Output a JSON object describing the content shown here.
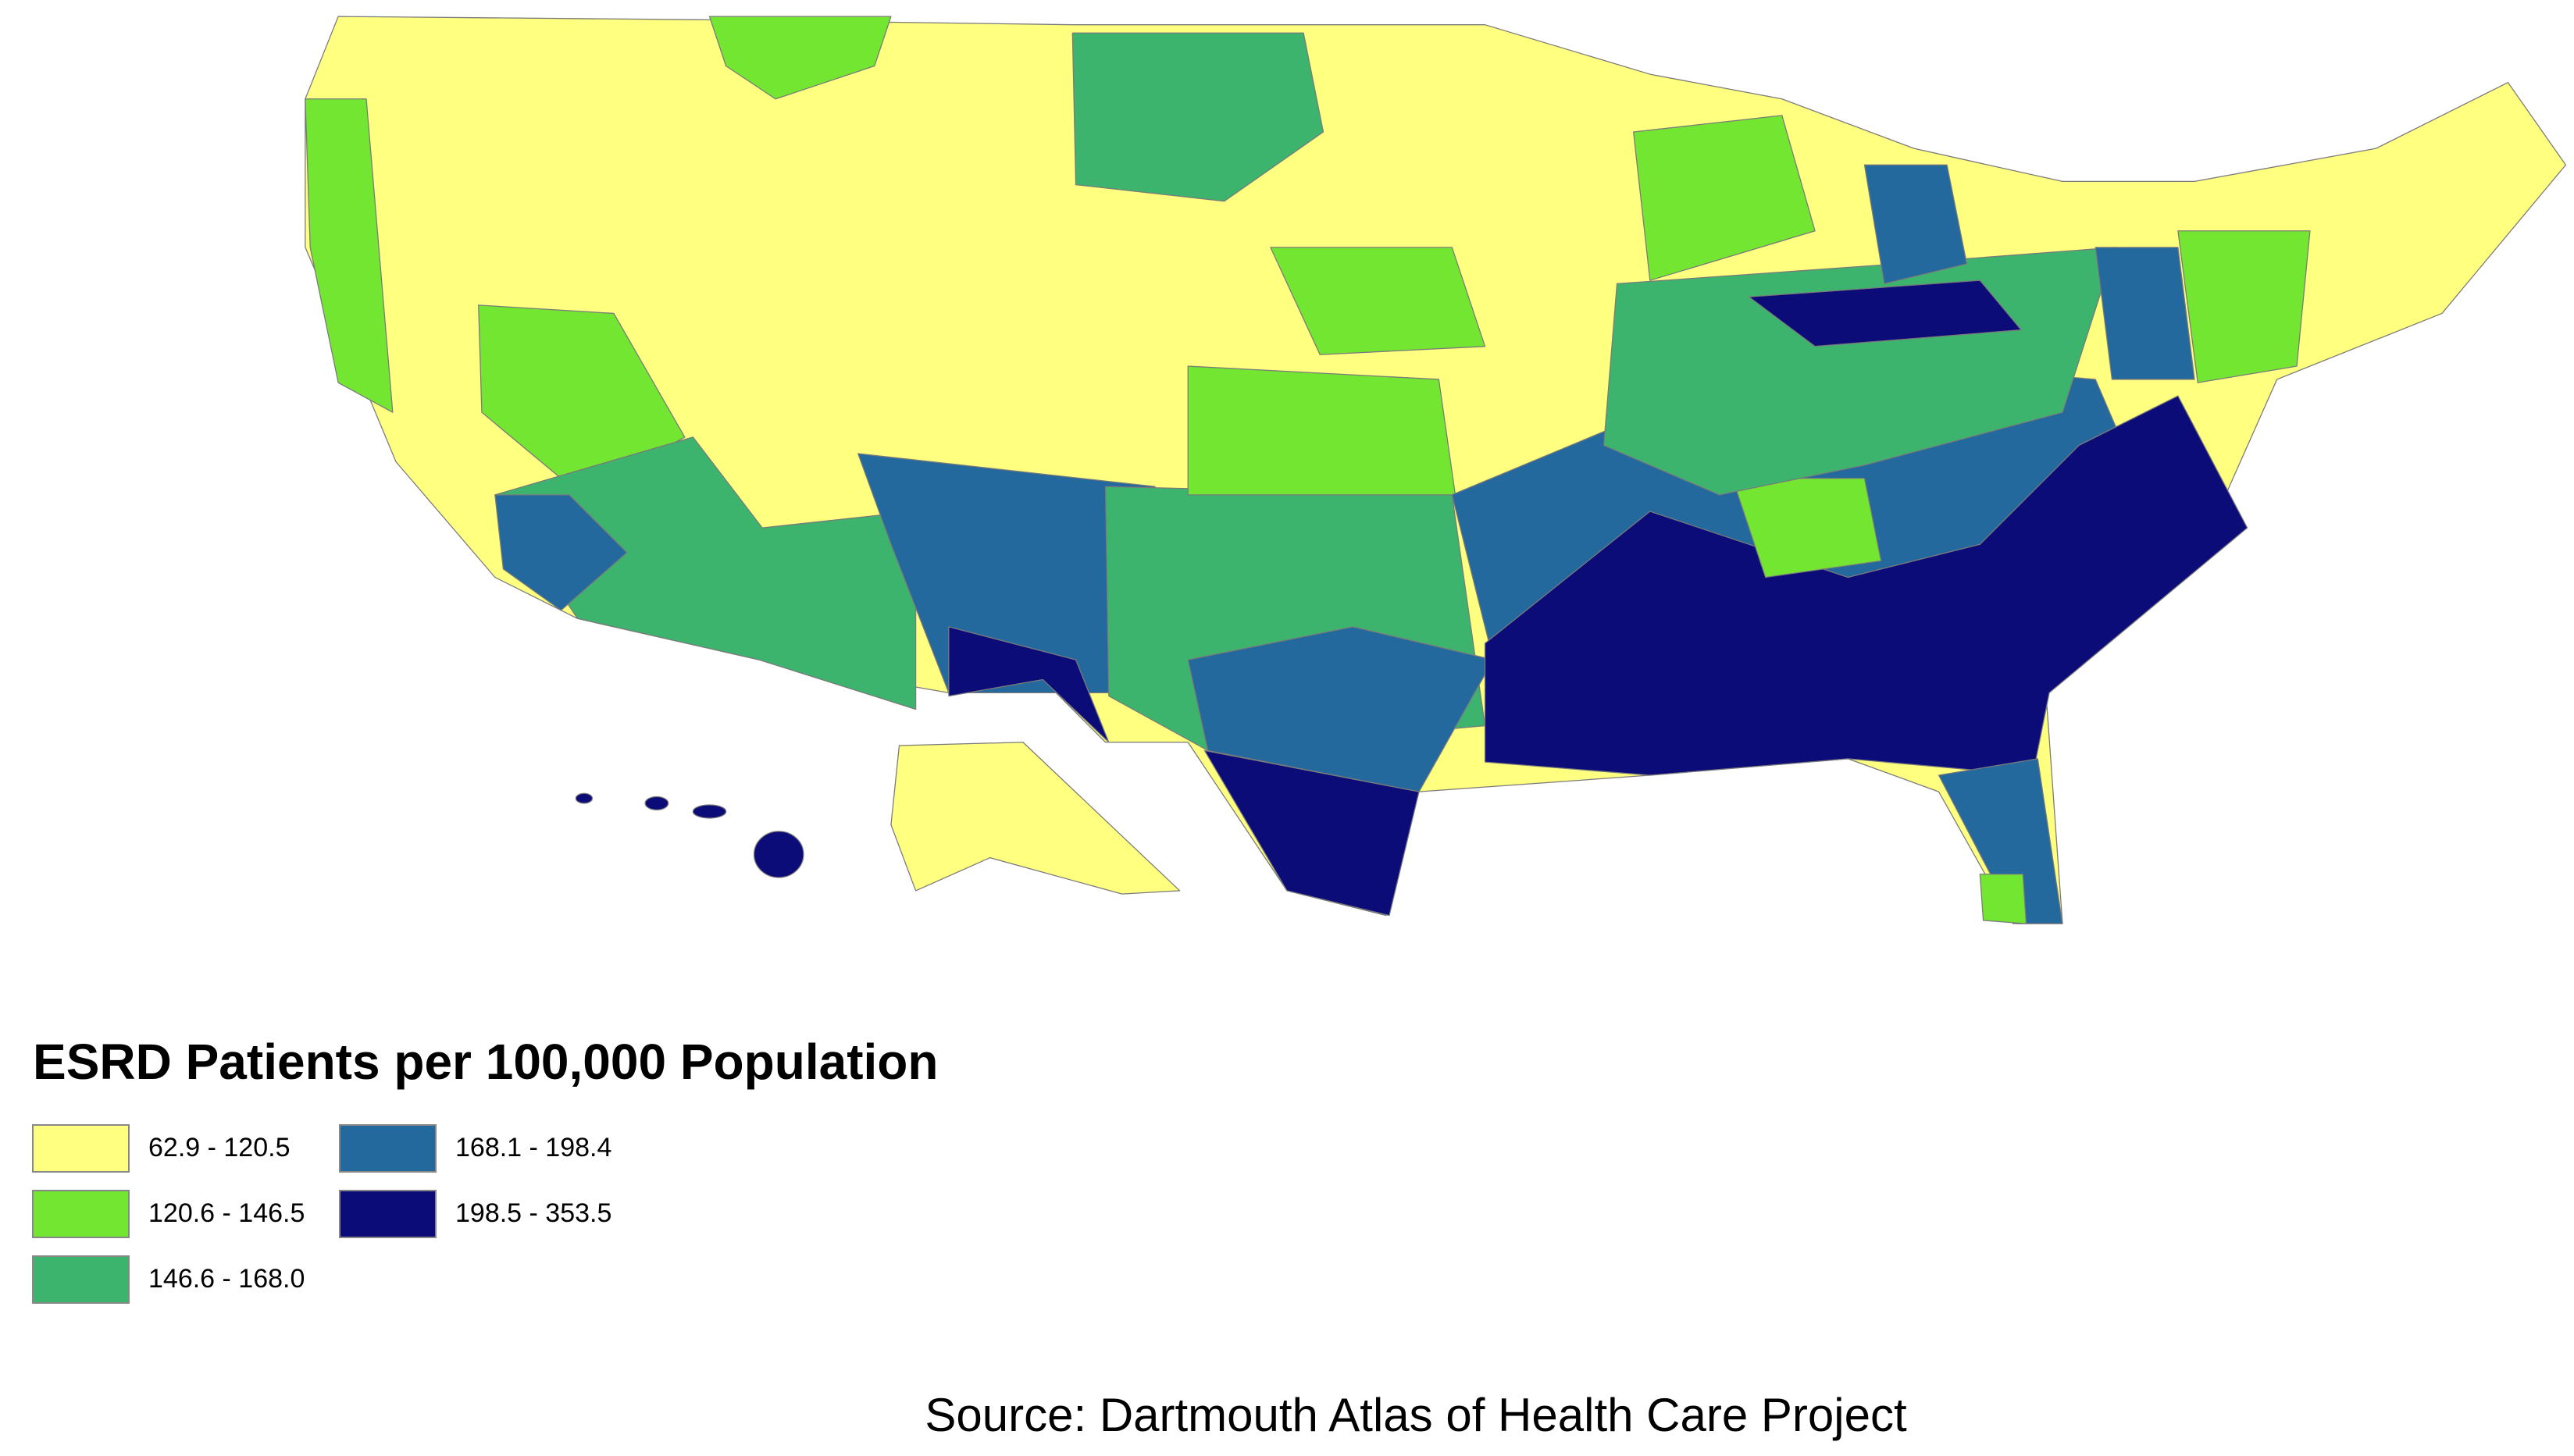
{
  "title": "ESRD Patients per 100,000 Population",
  "legend": {
    "items": [
      {
        "label": "62.9 - 120.5",
        "color": "#ffff80"
      },
      {
        "label": "120.6 - 146.5",
        "color": "#73e632"
      },
      {
        "label": "146.6 - 168.0",
        "color": "#3cb46e"
      },
      {
        "label": "168.1 - 198.4",
        "color": "#23699e"
      },
      {
        "label": "198.5 - 353.5",
        "color": "#0c0c78"
      }
    ]
  },
  "source": "Source: Dartmouth Atlas of Health Care Project"
}
